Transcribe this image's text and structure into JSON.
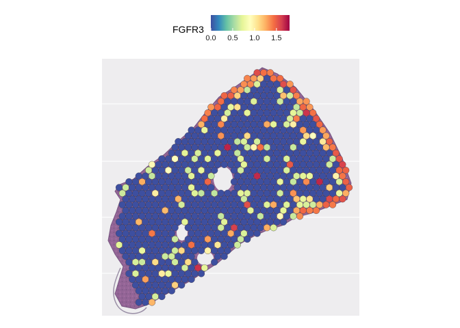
{
  "chart_data": {
    "type": "scatter",
    "subtype": "spatial-spot-plot",
    "feature": "FGFR3",
    "legend": {
      "title": "FGFR3",
      "position": "top",
      "ticks": [
        "0.0",
        "0.5",
        "1.0",
        "1.5"
      ],
      "tick_values": [
        0.0,
        0.5,
        1.0,
        1.5
      ],
      "range": [
        0.0,
        1.8
      ],
      "colormap": "Spectral (reversed)",
      "colors": [
        "#3d4fa0",
        "#3288bd",
        "#66c2a5",
        "#abdda4",
        "#e6f598",
        "#ffffbf",
        "#fee08b",
        "#fdae61",
        "#f46d43",
        "#d53e4f",
        "#9e0142"
      ]
    },
    "background": "H&E tissue section image",
    "grid": false,
    "expression_summary": {
      "baseline_value": 0.0,
      "low_cluster_value": 0.6,
      "high_edge_value": 1.6,
      "high_region": "upper-right tissue edge"
    }
  }
}
